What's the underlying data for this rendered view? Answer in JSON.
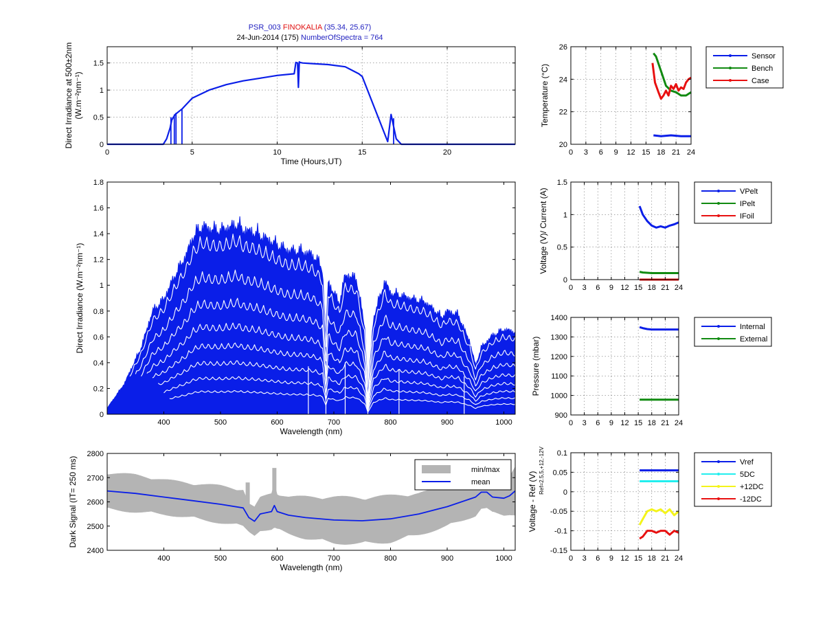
{
  "figure": {
    "title_line1": {
      "part1": "PSR_003",
      "part2": "FINOKALIA",
      "part3": "(35.34, 25.67)",
      "part1_color": "#1f1fbf",
      "part2_color": "#e01010",
      "part3_color": "#1f1fbf"
    },
    "title_line2": {
      "part1": "24-Jun-2014 (175)",
      "part2": "NumberOfSpectra = 764",
      "part1_color": "#000000",
      "part2_color": "#1f1fbf"
    }
  },
  "colors": {
    "blue": "#0a1ee8",
    "green": "#118a11",
    "red": "#e81010",
    "cyan": "#22eeee",
    "yellow": "#f4f41a",
    "gray": "#b4b4b4"
  },
  "chart_data": [
    {
      "id": "timeseries",
      "type": "line",
      "xlabel": "Time (Hours,UT)",
      "ylabel_line1": "Direct Irradiance at 500±2nm",
      "ylabel_line2": "(W.m⁻²nm⁻¹)",
      "xlim": [
        0,
        24
      ],
      "ylim": [
        0,
        1.8
      ],
      "xticks": [
        0,
        5,
        10,
        15,
        20
      ],
      "yticks": [
        0,
        0.5,
        1,
        1.5
      ],
      "series": [
        {
          "color": "#0a1ee8",
          "x": [
            0,
            3.3,
            3.5,
            3.7,
            3.8,
            4.0,
            4.4,
            5.0,
            6.0,
            7.0,
            8.0,
            9.0,
            10.0,
            11.0,
            11.1,
            11.2,
            11.25,
            11.3,
            11.35,
            11.5,
            12.0,
            13.0,
            14.0,
            14.8,
            15.0,
            16.5,
            16.7,
            16.8,
            17.0,
            17.3,
            24
          ],
          "y": [
            0,
            0,
            0.1,
            0.3,
            0.45,
            0.55,
            0.65,
            0.85,
            1.0,
            1.1,
            1.17,
            1.22,
            1.27,
            1.3,
            1.51,
            1.5,
            1.05,
            1.52,
            1.51,
            1.5,
            1.49,
            1.47,
            1.43,
            1.3,
            1.25,
            0.05,
            0.55,
            0.4,
            0.1,
            0,
            0
          ]
        }
      ],
      "spikes": [
        {
          "x": 3.75,
          "y": 0.5
        },
        {
          "x": 3.95,
          "y": 0.55
        },
        {
          "x": 4.05,
          "y": 0.58
        },
        {
          "x": 4.4,
          "y": 0.65
        },
        {
          "x": 16.85,
          "y": 0.48
        }
      ]
    },
    {
      "id": "spectra",
      "type": "area",
      "xlabel": "Wavelength (nm)",
      "ylabel": "Direct Irradiance (W.m⁻²nm⁻¹)",
      "xlim": [
        300,
        1020
      ],
      "ylim": [
        0,
        1.8
      ],
      "xticks": [
        400,
        500,
        600,
        700,
        800,
        900,
        1000
      ],
      "yticks": [
        0,
        0.2,
        0.4,
        0.6,
        0.8,
        1,
        1.2,
        1.4,
        1.6,
        1.8
      ],
      "envelope_x": [
        300,
        330,
        360,
        380,
        400,
        420,
        440,
        450,
        460,
        470,
        480,
        500,
        520,
        530,
        540,
        560,
        580,
        600,
        620,
        640,
        660,
        670,
        680,
        686,
        690,
        700,
        710,
        720,
        740,
        755,
        760,
        770,
        790,
        800,
        820,
        840,
        860,
        880,
        890,
        900,
        920,
        930,
        940,
        950,
        960,
        980,
        1000,
        1020
      ],
      "envelope_y": [
        0.05,
        0.25,
        0.55,
        0.85,
        0.95,
        1.15,
        1.32,
        1.45,
        1.52,
        1.55,
        1.53,
        1.52,
        1.55,
        1.57,
        1.52,
        1.5,
        1.45,
        1.4,
        1.35,
        1.35,
        1.32,
        1.28,
        1.2,
        0.6,
        1.1,
        1.0,
        0.92,
        1.15,
        1.12,
        0.7,
        0.15,
        0.8,
        1.1,
        1.0,
        0.98,
        0.95,
        0.93,
        0.85,
        0.8,
        0.85,
        0.82,
        0.7,
        0.6,
        0.4,
        0.55,
        0.65,
        0.7,
        0.68
      ],
      "lower_curves": [
        {
          "level": 0.9,
          "color": "#ffffff"
        },
        {
          "level": 0.72,
          "color": "#ffffff"
        },
        {
          "level": 0.58,
          "color": "#ffffff"
        },
        {
          "level": 0.46,
          "color": "#ffffff"
        },
        {
          "level": 0.36,
          "color": "#ffffff"
        },
        {
          "level": 0.27,
          "color": "#ffffff"
        },
        {
          "level": 0.19,
          "color": "#ffffff"
        },
        {
          "level": 0.12,
          "color": "#ffffff"
        }
      ]
    },
    {
      "id": "dark",
      "type": "area",
      "xlabel": "Wavelength (nm)",
      "ylabel": "Dark Signal (IT= 250 ms)",
      "xlim": [
        300,
        1020
      ],
      "ylim": [
        2400,
        2800
      ],
      "xticks": [
        400,
        500,
        600,
        700,
        800,
        900,
        1000
      ],
      "yticks": [
        2400,
        2500,
        2600,
        2700,
        2800
      ],
      "legend": {
        "placement": "top-right",
        "entries": [
          "min/max",
          "mean"
        ]
      },
      "mean_x": [
        300,
        350,
        400,
        450,
        500,
        540,
        550,
        560,
        570,
        590,
        595,
        600,
        620,
        650,
        700,
        750,
        800,
        850,
        900,
        950,
        960,
        970,
        980,
        1000,
        1010,
        1020
      ],
      "mean_y": [
        2645,
        2635,
        2620,
        2605,
        2590,
        2575,
        2535,
        2520,
        2550,
        2560,
        2585,
        2560,
        2545,
        2535,
        2525,
        2522,
        2530,
        2550,
        2580,
        2620,
        2640,
        2640,
        2620,
        2615,
        2625,
        2645
      ],
      "band_half_width": [
        80,
        80,
        75,
        75,
        80,
        80,
        60,
        60,
        70,
        80,
        100,
        80,
        80,
        90,
        100,
        100,
        100,
        90,
        85,
        80,
        70,
        70,
        70,
        75,
        80,
        100
      ],
      "band_spikes": [
        {
          "x": 548,
          "y": 2680
        },
        {
          "x": 595,
          "y": 2740
        }
      ]
    },
    {
      "id": "temperature",
      "type": "line",
      "ylabel": "Temperature (°C)",
      "xlim": [
        0,
        24
      ],
      "ylim": [
        20,
        26
      ],
      "xticks": [
        0,
        3,
        6,
        9,
        12,
        15,
        18,
        21,
        24
      ],
      "yticks": [
        20,
        22,
        24,
        26
      ],
      "series": [
        {
          "name": "Sensor",
          "color": "#0a1ee8",
          "x": [
            16.5,
            18,
            20,
            22,
            24
          ],
          "y": [
            20.55,
            20.5,
            20.55,
            20.5,
            20.5
          ]
        },
        {
          "name": "Bench",
          "color": "#118a11",
          "x": [
            16.5,
            17,
            18,
            19,
            20,
            21,
            22,
            23,
            24
          ],
          "y": [
            25.6,
            25.4,
            24.5,
            23.6,
            23.3,
            23.2,
            23.0,
            23.0,
            23.2
          ]
        },
        {
          "name": "Case",
          "color": "#e81010",
          "x": [
            16.3,
            16.8,
            17.5,
            18,
            18.5,
            19,
            19.5,
            20,
            20.5,
            21,
            21.5,
            22,
            22.5,
            23,
            23.5,
            24
          ],
          "y": [
            25.0,
            23.8,
            23.2,
            22.8,
            23.0,
            23.3,
            23.0,
            23.6,
            23.4,
            23.7,
            23.3,
            23.5,
            23.4,
            23.8,
            24.0,
            24.1
          ]
        }
      ],
      "legend": {
        "placement": "outside-right"
      }
    },
    {
      "id": "voltage_current",
      "type": "line",
      "ylabel": "Voltage (V)/ Current (A)",
      "xlim": [
        0,
        24
      ],
      "ylim": [
        0,
        1.5
      ],
      "xticks": [
        0,
        3,
        6,
        9,
        12,
        15,
        18,
        21,
        24
      ],
      "yticks": [
        0,
        0.5,
        1,
        1.5
      ],
      "series": [
        {
          "name": "VPelt",
          "color": "#0a1ee8",
          "x": [
            15.3,
            16,
            17,
            18,
            19,
            20,
            21,
            22,
            23,
            24
          ],
          "y": [
            1.13,
            1.0,
            0.9,
            0.83,
            0.8,
            0.82,
            0.8,
            0.83,
            0.85,
            0.88
          ]
        },
        {
          "name": "IPelt",
          "color": "#118a11",
          "x": [
            15.3,
            16,
            18,
            20,
            22,
            24
          ],
          "y": [
            0.12,
            0.11,
            0.1,
            0.1,
            0.1,
            0.1
          ]
        },
        {
          "name": "IFoil",
          "color": "#e81010",
          "x": [
            15.3,
            18,
            21,
            24
          ],
          "y": [
            0.0,
            0.0,
            0.0,
            0.0
          ]
        }
      ],
      "legend": {
        "placement": "outside-right"
      }
    },
    {
      "id": "pressure",
      "type": "line",
      "ylabel": "Pressure (mbar)",
      "xlim": [
        0,
        24
      ],
      "ylim": [
        900,
        1400
      ],
      "xticks": [
        0,
        3,
        6,
        9,
        12,
        15,
        18,
        21,
        24
      ],
      "yticks": [
        900,
        1000,
        1100,
        1200,
        1300,
        1400
      ],
      "series": [
        {
          "name": "Internal",
          "color": "#0a1ee8",
          "x": [
            15.3,
            16,
            17,
            18,
            20,
            22,
            24
          ],
          "y": [
            1350,
            1345,
            1340,
            1338,
            1338,
            1338,
            1338
          ]
        },
        {
          "name": "External",
          "color": "#118a11",
          "x": [
            15.3,
            18,
            21,
            24
          ],
          "y": [
            978,
            978,
            978,
            978
          ]
        }
      ],
      "legend": {
        "placement": "outside-right"
      }
    },
    {
      "id": "reference_voltage",
      "type": "line",
      "ylabel": "Voltage - Ref (V)",
      "ylabel_sub": "Ref=2.5,5,+12,-12V",
      "xlim": [
        0,
        24
      ],
      "ylim": [
        -0.15,
        0.1
      ],
      "xticks": [
        0,
        3,
        6,
        9,
        12,
        15,
        18,
        21,
        24
      ],
      "yticks": [
        -0.15,
        -0.1,
        -0.05,
        0,
        0.05,
        0.1
      ],
      "series": [
        {
          "name": "Vref",
          "color": "#0a1ee8",
          "x": [
            15.3,
            18,
            21,
            24
          ],
          "y": [
            0.055,
            0.055,
            0.055,
            0.055
          ]
        },
        {
          "name": "5DC",
          "color": "#22eeee",
          "x": [
            15.3,
            18,
            21,
            24
          ],
          "y": [
            0.027,
            0.027,
            0.027,
            0.027
          ]
        },
        {
          "name": "+12DC",
          "color": "#f4f41a",
          "x": [
            15.3,
            16,
            17,
            18,
            19,
            20,
            21,
            22,
            23,
            24
          ],
          "y": [
            -0.085,
            -0.07,
            -0.05,
            -0.045,
            -0.05,
            -0.045,
            -0.055,
            -0.045,
            -0.06,
            -0.05
          ]
        },
        {
          "name": "-12DC",
          "color": "#e81010",
          "x": [
            15.3,
            16,
            17,
            18,
            19,
            20,
            21,
            22,
            23,
            24
          ],
          "y": [
            -0.12,
            -0.115,
            -0.1,
            -0.1,
            -0.105,
            -0.1,
            -0.1,
            -0.11,
            -0.1,
            -0.105
          ]
        }
      ],
      "legend": {
        "placement": "outside-right"
      }
    }
  ]
}
